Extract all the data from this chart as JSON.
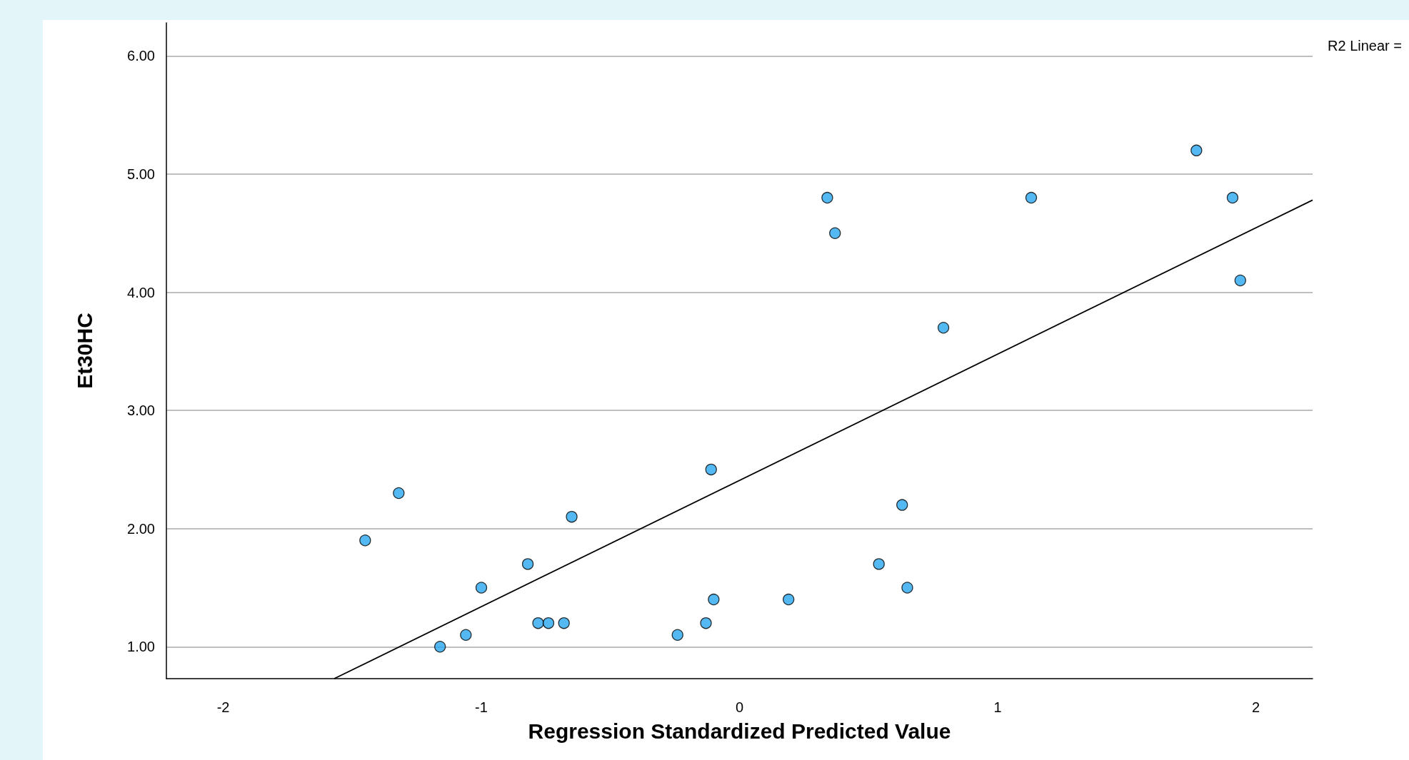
{
  "chart_data": {
    "type": "scatter",
    "xlabel": "Regression Standardized Predicted Value",
    "ylabel": "Et30HC",
    "xlim": [
      -2.22,
      2.22
    ],
    "xticks": [
      -2,
      -1,
      0,
      1,
      2
    ],
    "ylim": [
      0.73,
      6.28
    ],
    "yticks": [
      {
        "value": 1,
        "label": "1.00"
      },
      {
        "value": 2,
        "label": "2.00"
      },
      {
        "value": 3,
        "label": "3.00"
      },
      {
        "value": 4,
        "label": "4.00"
      },
      {
        "value": 5,
        "label": "5.00"
      },
      {
        "value": 6,
        "label": "6.00"
      }
    ],
    "grid": "y",
    "marker": "circle",
    "annotations": [
      "R2 Linear ="
    ],
    "series": [
      {
        "color": "#29a8f0",
        "x": [
          -1.45,
          -1.32,
          -1.16,
          -1.06,
          -1.0,
          -0.82,
          -0.78,
          -0.74,
          -0.68,
          -0.65,
          -0.24,
          -0.13,
          -0.11,
          -0.1,
          0.19,
          0.34,
          0.37,
          0.54,
          0.63,
          0.65,
          0.79,
          1.13,
          1.77,
          1.91,
          1.94
        ],
        "values": [
          1.9,
          2.3,
          1.0,
          1.1,
          1.5,
          1.7,
          1.2,
          1.2,
          1.2,
          2.1,
          1.1,
          1.2,
          2.5,
          1.4,
          1.4,
          4.8,
          4.5,
          1.7,
          2.2,
          1.5,
          3.7,
          4.8,
          5.2,
          4.8,
          4.1
        ]
      },
      {
        "type": "line",
        "color": "#000000",
        "x": [
          -1.57,
          2.22
        ],
        "values": [
          0.73,
          4.78
        ],
        "marker": "none"
      }
    ]
  }
}
